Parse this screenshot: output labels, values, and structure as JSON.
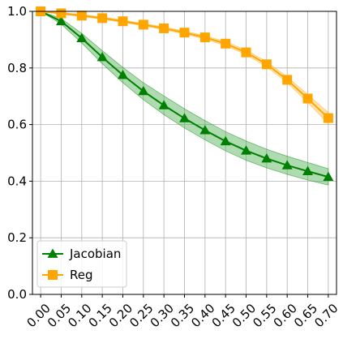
{
  "chart_data": {
    "type": "line",
    "title": "",
    "xlabel": "",
    "ylabel": "",
    "categories": [
      "0.00",
      "0.05",
      "0.10",
      "0.15",
      "0.20",
      "0.25",
      "0.30",
      "0.35",
      "0.40",
      "0.45",
      "0.50",
      "0.55",
      "0.60",
      "0.65",
      "0.70"
    ],
    "x": [
      0.0,
      0.05,
      0.1,
      0.15,
      0.2,
      0.25,
      0.3,
      0.35,
      0.4,
      0.45,
      0.5,
      0.55,
      0.6,
      0.65,
      0.7
    ],
    "xlim": [
      -0.02,
      0.72
    ],
    "ylim": [
      0.0,
      1.0
    ],
    "yticks": [
      0.0,
      0.2,
      0.4,
      0.6,
      0.8,
      1.0
    ],
    "ytick_labels": [
      "0.0",
      "0.2",
      "0.4",
      "0.6",
      "0.8",
      "1.0"
    ],
    "grid": true,
    "legend_position": "bottom-left",
    "series": [
      {
        "name": "Jacobian",
        "color": "#008000",
        "band_color": "#4caf50",
        "marker": "triangle",
        "values": [
          1.0,
          0.965,
          0.905,
          0.838,
          0.775,
          0.718,
          0.668,
          0.622,
          0.58,
          0.541,
          0.508,
          0.48,
          0.456,
          0.435,
          0.415
        ],
        "lower": [
          1.0,
          0.955,
          0.888,
          0.815,
          0.748,
          0.688,
          0.635,
          0.588,
          0.546,
          0.507,
          0.474,
          0.447,
          0.424,
          0.404,
          0.386
        ],
        "upper": [
          1.0,
          0.975,
          0.922,
          0.861,
          0.802,
          0.748,
          0.701,
          0.656,
          0.614,
          0.575,
          0.542,
          0.513,
          0.488,
          0.466,
          0.444
        ]
      },
      {
        "name": "Reg",
        "color": "#ffa500",
        "band_color": "#ffc04d",
        "marker": "square",
        "values": [
          1.0,
          0.993,
          0.985,
          0.976,
          0.965,
          0.953,
          0.94,
          0.925,
          0.908,
          0.886,
          0.855,
          0.813,
          0.758,
          0.692,
          0.623
        ],
        "lower": [
          1.0,
          0.99,
          0.981,
          0.972,
          0.961,
          0.949,
          0.935,
          0.92,
          0.902,
          0.879,
          0.847,
          0.804,
          0.748,
          0.678,
          0.603
        ],
        "upper": [
          1.0,
          0.996,
          0.989,
          0.98,
          0.969,
          0.957,
          0.945,
          0.93,
          0.914,
          0.893,
          0.863,
          0.822,
          0.768,
          0.706,
          0.643
        ]
      }
    ]
  }
}
